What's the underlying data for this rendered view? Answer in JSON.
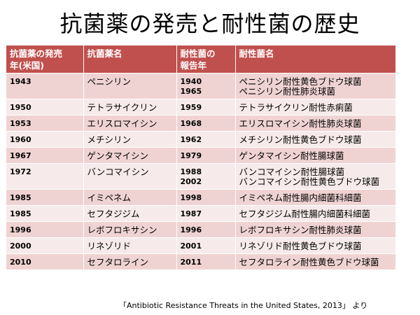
{
  "title": "抗菌薬の発売と耐性菌の歴史",
  "table": {
    "headers": {
      "release_year": [
        "抗菌薬の発売",
        "年(米国)"
      ],
      "drug_name": [
        "抗菌薬名"
      ],
      "report_year": [
        "耐性菌の",
        "報告年"
      ],
      "resistant_name": [
        "耐性菌名"
      ]
    },
    "rows": [
      {
        "release_year": "1943",
        "drug": "ペニシリン",
        "report_years": [
          "1940",
          "1965"
        ],
        "resistant": [
          "ペニシリン耐性黄色ブドウ球菌",
          "ペニシリン耐性肺炎球菌"
        ]
      },
      {
        "release_year": "1950",
        "drug": "テトラサイクリン",
        "report_years": [
          "1959"
        ],
        "resistant": [
          "テトラサイクリン耐性赤痢菌"
        ]
      },
      {
        "release_year": "1953",
        "drug": "エリスロマイシン",
        "report_years": [
          "1968"
        ],
        "resistant": [
          "エリスロマイシン耐性肺炎球菌"
        ]
      },
      {
        "release_year": "1960",
        "drug": "メチシリン",
        "report_years": [
          "1962"
        ],
        "resistant": [
          "メチシリン耐性黄色ブドウ球菌"
        ]
      },
      {
        "release_year": "1967",
        "drug": "ゲンタマイシン",
        "report_years": [
          "1979"
        ],
        "resistant": [
          "ゲンタマイシン耐性腸球菌"
        ]
      },
      {
        "release_year": "1972",
        "drug": "バンコマイシン",
        "report_years": [
          "1988",
          "2002"
        ],
        "resistant": [
          "バンコマイシン耐性腸球菌",
          "バンコマイシン耐性黄色ブドウ球菌"
        ]
      },
      {
        "release_year": "1985",
        "drug": "イミペネム",
        "report_years": [
          "1998"
        ],
        "resistant": [
          "イミペネム耐性腸内細菌科細菌"
        ]
      },
      {
        "release_year": "1985",
        "drug": "セフタジジム",
        "report_years": [
          "1987"
        ],
        "resistant": [
          "セフタジジム耐性腸内細菌科細菌"
        ]
      },
      {
        "release_year": "1996",
        "drug": "レボフロキサシン",
        "report_years": [
          "1996"
        ],
        "resistant": [
          "レボフロキサシン耐性肺炎球菌"
        ]
      },
      {
        "release_year": "2000",
        "drug": "リネゾリド",
        "report_years": [
          "2001"
        ],
        "resistant": [
          "リネゾリド耐性黄色ブドウ球菌"
        ]
      },
      {
        "release_year": "2010",
        "drug": "セフタロライン",
        "report_years": [
          "2011"
        ],
        "resistant": [
          "セフタロライン耐性黄色ブドウ球菌"
        ]
      }
    ]
  },
  "source": "「Antibiotic Resistance Threats in the United States, 2013」 より",
  "colors": {
    "header_bg": "#c0504d",
    "row_odd_bg": "#efd3d2",
    "row_even_bg": "#f7eaea"
  }
}
